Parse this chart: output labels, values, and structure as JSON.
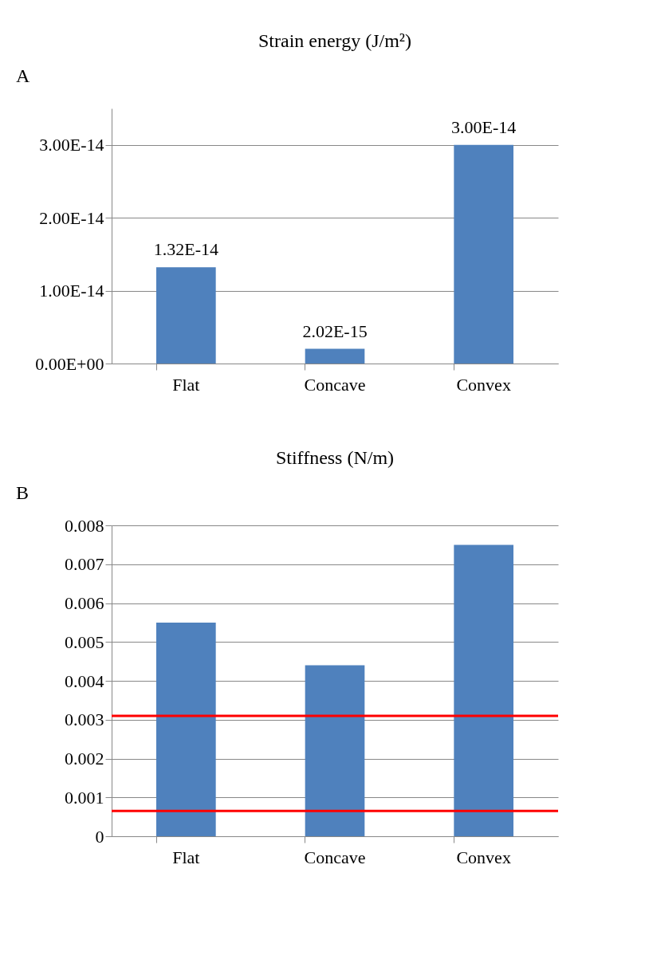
{
  "chart_data": [
    {
      "type": "bar",
      "title": "Strain energy (J/m²)",
      "annotations": [
        "A"
      ],
      "categories": [
        "Flat",
        "Concave",
        "Convex"
      ],
      "values": [
        1.32e-14,
        2.02e-15,
        3e-14
      ],
      "color": "#4f81bd",
      "data_labels": true,
      "value_labels": [
        "1.32E-14",
        "2.02E-15",
        "3.00E-14"
      ],
      "ylim": [
        0,
        3.5e-14
      ],
      "yticks": [
        {
          "value": 0,
          "label": "0.00E+00"
        },
        {
          "value": 1e-14,
          "label": "1.00E-14"
        },
        {
          "value": 2e-14,
          "label": "2.00E-14"
        },
        {
          "value": 3e-14,
          "label": "3.00E-14"
        }
      ],
      "grid": "y"
    },
    {
      "type": "bar",
      "title": "Stiffness (N/m)",
      "annotations": [
        "B"
      ],
      "categories": [
        "Flat",
        "Concave",
        "Convex"
      ],
      "values": [
        0.0055,
        0.0044,
        0.0075
      ],
      "color": "#4f81bd",
      "ylim": [
        0,
        0.008
      ],
      "yticks": [
        0,
        0.001,
        0.002,
        0.003,
        0.004,
        0.005,
        0.006,
        0.007,
        0.008
      ],
      "grid": "y",
      "ref_lines": [
        {
          "axis": "y",
          "value": 0.0031,
          "color": "#ff0000"
        },
        {
          "axis": "y",
          "value": 0.00065,
          "color": "#ff0000"
        }
      ]
    }
  ]
}
